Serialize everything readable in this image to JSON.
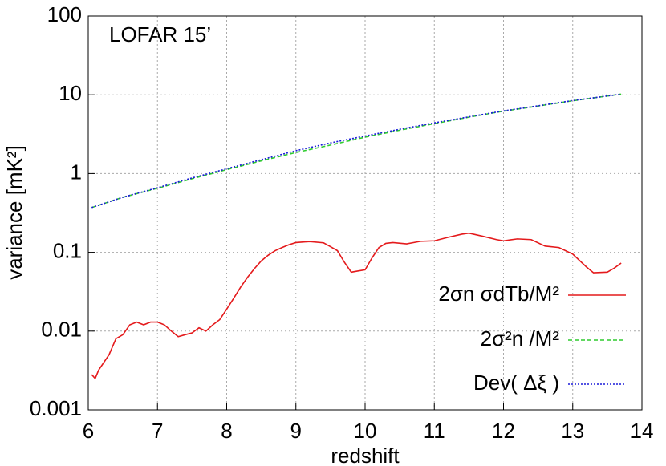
{
  "chart_data": {
    "type": "line",
    "annotation": "LOFAR 15’",
    "x_label": "redshift",
    "y_label": "variance [mK²]",
    "xlim": [
      6,
      14
    ],
    "xticks": [
      6,
      7,
      8,
      9,
      10,
      11,
      12,
      13,
      14
    ],
    "ylim": [
      0.001,
      100
    ],
    "yticks": [
      0.001,
      0.01,
      0.1,
      1,
      10,
      100
    ],
    "log_y": true,
    "grid": true,
    "legend": "lower right",
    "series": [
      {
        "name": "2σn σdTb/M²",
        "color": "#e41a1c",
        "dash": "solid",
        "x": [
          6.05,
          6.1,
          6.15,
          6.3,
          6.4,
          6.5,
          6.6,
          6.7,
          6.8,
          6.9,
          7.0,
          7.1,
          7.2,
          7.3,
          7.4,
          7.5,
          7.6,
          7.7,
          7.8,
          7.9,
          8.0,
          8.1,
          8.2,
          8.3,
          8.4,
          8.5,
          8.6,
          8.7,
          8.8,
          8.9,
          9.0,
          9.2,
          9.4,
          9.5,
          9.6,
          9.7,
          9.8,
          9.9,
          10.0,
          10.1,
          10.2,
          10.3,
          10.4,
          10.6,
          10.8,
          11.0,
          11.2,
          11.4,
          11.5,
          11.7,
          11.9,
          12.0,
          12.2,
          12.4,
          12.6,
          12.8,
          13.0,
          13.2,
          13.3,
          13.5,
          13.6,
          13.7
        ],
        "values": [
          0.0028,
          0.0025,
          0.0032,
          0.005,
          0.008,
          0.009,
          0.012,
          0.013,
          0.012,
          0.013,
          0.013,
          0.012,
          0.01,
          0.0085,
          0.009,
          0.0095,
          0.011,
          0.01,
          0.012,
          0.014,
          0.019,
          0.026,
          0.036,
          0.048,
          0.062,
          0.078,
          0.092,
          0.105,
          0.115,
          0.125,
          0.133,
          0.137,
          0.132,
          0.118,
          0.105,
          0.075,
          0.056,
          0.058,
          0.06,
          0.085,
          0.115,
          0.13,
          0.133,
          0.128,
          0.138,
          0.14,
          0.155,
          0.17,
          0.175,
          0.16,
          0.145,
          0.14,
          0.148,
          0.145,
          0.12,
          0.115,
          0.095,
          0.065,
          0.055,
          0.056,
          0.063,
          0.073
        ]
      },
      {
        "name": "2σ²n /M²",
        "color": "#2ecc2e",
        "dash": "dashed",
        "x": [
          6.05,
          6.5,
          7,
          7.5,
          8,
          8.5,
          9,
          9.5,
          10,
          10.5,
          11,
          11.5,
          12,
          12.5,
          13,
          13.7
        ],
        "values": [
          0.37,
          0.5,
          0.65,
          0.86,
          1.12,
          1.45,
          1.85,
          2.3,
          2.9,
          3.55,
          4.3,
          5.2,
          6.2,
          7.2,
          8.4,
          10.2
        ]
      },
      {
        "name": "Dev( Δξ )",
        "color": "#1a1ad9",
        "dash": "dotted",
        "x": [
          6.05,
          6.5,
          7,
          7.5,
          8,
          8.5,
          9,
          9.5,
          10,
          10.5,
          11,
          11.5,
          12,
          12.5,
          13,
          13.7
        ],
        "values": [
          0.37,
          0.5,
          0.66,
          0.88,
          1.15,
          1.5,
          1.95,
          2.45,
          3.0,
          3.65,
          4.4,
          5.25,
          6.25,
          7.25,
          8.45,
          10.2
        ]
      }
    ]
  }
}
